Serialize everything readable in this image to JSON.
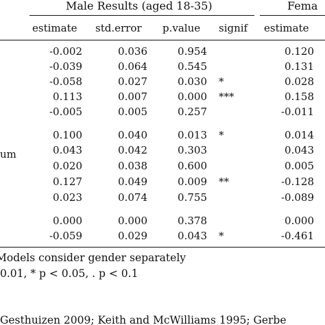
{
  "group_headers": {
    "male": "Male Results (aged 18-35)",
    "female_partial": "Fema"
  },
  "columns": {
    "male_estimate": "estimate",
    "male_std_error": "std.error",
    "male_p_value": "p.value",
    "male_signif": "signif",
    "female_estimate": "estimate"
  },
  "row_label_fragment": "um",
  "rows": [
    {
      "male_estimate": "-0.002",
      "male_std_error": "0.036",
      "male_p_value": "0.954",
      "male_signif": "",
      "female_estimate": "0.120"
    },
    {
      "male_estimate": "-0.039",
      "male_std_error": "0.064",
      "male_p_value": "0.545",
      "male_signif": "",
      "female_estimate": "0.131"
    },
    {
      "male_estimate": "-0.058",
      "male_std_error": "0.027",
      "male_p_value": "0.030",
      "male_signif": "*",
      "female_estimate": "0.028"
    },
    {
      "male_estimate": "0.113",
      "male_std_error": "0.007",
      "male_p_value": "0.000",
      "male_signif": "***",
      "female_estimate": "0.158"
    },
    {
      "male_estimate": "-0.005",
      "male_std_error": "0.005",
      "male_p_value": "0.257",
      "male_signif": "",
      "female_estimate": "-0.011"
    },
    {
      "male_estimate": "0.100",
      "male_std_error": "0.040",
      "male_p_value": "0.013",
      "male_signif": "*",
      "female_estimate": "0.014"
    },
    {
      "male_estimate": "0.043",
      "male_std_error": "0.042",
      "male_p_value": "0.303",
      "male_signif": "",
      "female_estimate": "0.043"
    },
    {
      "male_estimate": "0.020",
      "male_std_error": "0.038",
      "male_p_value": "0.600",
      "male_signif": "",
      "female_estimate": "0.005"
    },
    {
      "male_estimate": "0.127",
      "male_std_error": "0.049",
      "male_p_value": "0.009",
      "male_signif": "**",
      "female_estimate": "-0.128"
    },
    {
      "male_estimate": "0.023",
      "male_std_error": "0.074",
      "male_p_value": "0.755",
      "male_signif": "",
      "female_estimate": "-0.089"
    },
    {
      "male_estimate": "0.000",
      "male_std_error": "0.000",
      "male_p_value": "0.378",
      "male_signif": "",
      "female_estimate": "0.000"
    },
    {
      "male_estimate": "-0.059",
      "male_std_error": "0.029",
      "male_p_value": "0.043",
      "male_signif": "*",
      "female_estimate": "-0.461"
    }
  ],
  "notes": {
    "line1": "Models consider gender separately",
    "line2": "0.01, * p < 0.05, . p < 0.1"
  },
  "references": "Gesthuizen 2009; Keith and McWilliams 1995; Gerbe"
}
